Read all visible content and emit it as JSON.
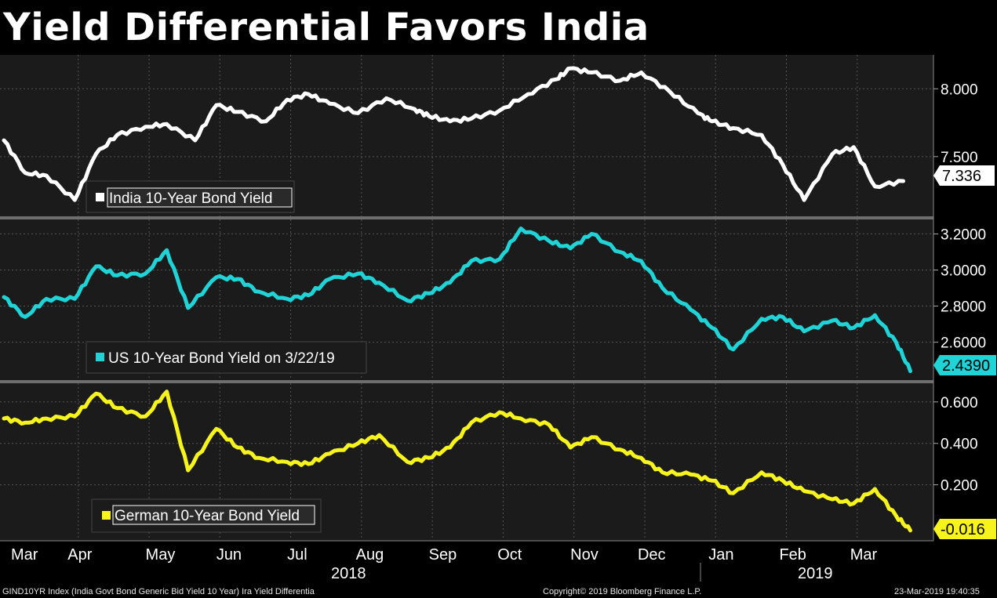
{
  "title": "Yield Differential Favors India",
  "footer": {
    "left": "GIND10YR Index (India Govt Bond Generic Bid Yield 10 Year) Ira Yield Differentia",
    "center": "Copyright© 2019 Bloomberg Finance L.P.",
    "right": "23-Mar-2019 19:40:35"
  },
  "colors": {
    "background": "#000000",
    "panel": "#1b1b1b",
    "grid": "#555555",
    "divider": "#6e6e6e",
    "india": "#ffffff",
    "us": "#1fd3d6",
    "germany": "#f6f41c"
  },
  "chart_data": [
    {
      "type": "line",
      "title": "India 10-Year Bond Yield",
      "series": [
        {
          "name": "India 10-Year Bond Yield",
          "last_value": "7.336",
          "x": [
            0,
            0.3,
            0.6,
            1,
            1.3,
            1.6,
            2,
            2.3,
            2.7,
            3,
            3.3,
            3.7,
            4,
            4.3,
            4.6,
            5,
            5.4,
            5.8,
            6,
            6.3,
            6.6,
            7,
            7.4,
            7.8,
            8,
            8.3,
            8.7,
            9,
            9.4,
            9.8,
            10,
            10.3,
            10.7,
            11,
            11.3,
            11.7,
            12,
            12.3,
            12.7
          ],
          "values": [
            7.62,
            7.38,
            7.36,
            7.18,
            7.52,
            7.66,
            7.72,
            7.74,
            7.62,
            7.88,
            7.83,
            7.76,
            7.92,
            7.96,
            7.89,
            7.82,
            7.93,
            7.85,
            7.8,
            7.76,
            7.78,
            7.84,
            7.96,
            8.07,
            8.15,
            8.12,
            8.06,
            8.12,
            7.98,
            7.82,
            7.76,
            7.71,
            7.66,
            7.44,
            7.18,
            7.52,
            7.57,
            7.28,
            7.32
          ]
        }
      ],
      "yticks": [
        "8.000",
        "7.500"
      ],
      "ylim": [
        7.06,
        8.25
      ]
    },
    {
      "type": "line",
      "title": "US 10-Year Bond Yield on 3/22/19",
      "series": [
        {
          "name": "US 10-Year Bond Yield on 3/22/19",
          "last_value": "2.4390",
          "x": [
            0,
            0.3,
            0.6,
            1,
            1.3,
            1.6,
            2,
            2.3,
            2.6,
            3,
            3.3,
            3.6,
            4,
            4.3,
            4.6,
            5,
            5.3,
            5.7,
            6,
            6.3,
            6.6,
            7,
            7.3,
            7.7,
            8,
            8.3,
            8.7,
            9,
            9.3,
            9.7,
            10,
            10.3,
            10.7,
            11,
            11.3,
            11.7,
            12,
            12.3,
            12.6,
            12.8
          ],
          "values": [
            2.85,
            2.74,
            2.84,
            2.84,
            3.02,
            2.97,
            2.98,
            3.11,
            2.79,
            2.96,
            2.95,
            2.88,
            2.84,
            2.86,
            2.95,
            2.98,
            2.93,
            2.83,
            2.87,
            2.93,
            3.05,
            3.06,
            3.23,
            3.16,
            3.12,
            3.2,
            3.1,
            3.05,
            2.9,
            2.78,
            2.68,
            2.56,
            2.73,
            2.74,
            2.66,
            2.72,
            2.68,
            2.75,
            2.6,
            2.44
          ]
        }
      ],
      "yticks": [
        "3.2000",
        "3.0000",
        "2.8000",
        "2.6000"
      ],
      "ylim": [
        2.39,
        3.28
      ]
    },
    {
      "type": "line",
      "title": "German 10-Year Bond Yield",
      "series": [
        {
          "name": "German 10-Year Bond Yield",
          "last_value": "-0.016",
          "x": [
            0,
            0.3,
            0.6,
            1,
            1.3,
            1.6,
            2,
            2.3,
            2.6,
            3,
            3.3,
            3.6,
            4,
            4.3,
            4.6,
            5,
            5.3,
            5.7,
            6,
            6.3,
            6.6,
            7,
            7.3,
            7.7,
            8,
            8.3,
            8.7,
            9,
            9.3,
            9.7,
            10,
            10.3,
            10.7,
            11,
            11.3,
            11.7,
            12,
            12.3,
            12.6,
            12.8
          ],
          "values": [
            0.52,
            0.5,
            0.52,
            0.53,
            0.64,
            0.57,
            0.53,
            0.65,
            0.27,
            0.47,
            0.38,
            0.33,
            0.31,
            0.3,
            0.35,
            0.4,
            0.44,
            0.31,
            0.33,
            0.38,
            0.5,
            0.55,
            0.52,
            0.49,
            0.38,
            0.43,
            0.37,
            0.33,
            0.26,
            0.25,
            0.22,
            0.16,
            0.26,
            0.22,
            0.17,
            0.13,
            0.11,
            0.18,
            0.05,
            -0.02
          ]
        }
      ],
      "yticks": [
        "0.600",
        "0.400",
        "0.200"
      ],
      "ylim": [
        -0.07,
        0.69
      ]
    }
  ],
  "x_axis": {
    "months": [
      "Mar",
      "Apr",
      "May",
      "Jun",
      "Jul",
      "Aug",
      "Sep",
      "Oct",
      "Nov",
      "Dec",
      "Jan",
      "Feb",
      "Mar"
    ],
    "years": [
      "2018",
      "2019"
    ]
  }
}
